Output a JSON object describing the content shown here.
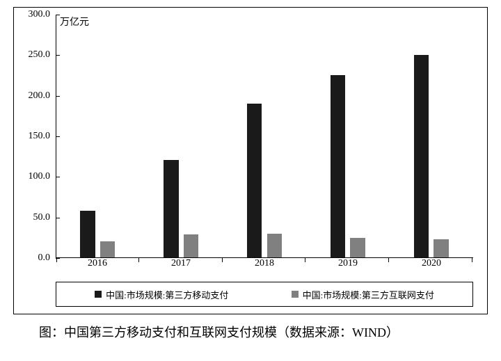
{
  "chart": {
    "type": "bar",
    "unit_label": "万亿元",
    "background_color": "#ffffff",
    "axis_color": "#000000",
    "label_fontsize": 14,
    "y": {
      "min": 0,
      "max": 300,
      "ticks": [
        "0.0",
        "50.0",
        "100.0",
        "150.0",
        "200.0",
        "250.0",
        "300.0"
      ],
      "tick_values": [
        0,
        50,
        100,
        150,
        200,
        250,
        300
      ]
    },
    "x": {
      "categories": [
        "2016",
        "2017",
        "2018",
        "2019",
        "2020"
      ]
    },
    "series": [
      {
        "name": "中国:市场规模:第三方移动支付",
        "color": "#1a1a1a",
        "values": [
          58,
          120,
          190,
          225,
          250
        ]
      },
      {
        "name": "中国:市场规模:第三方互联网支付",
        "color": "#808080",
        "values": [
          20,
          28,
          29,
          24,
          22
        ]
      }
    ],
    "bar_width_pct": 18,
    "bar_gap_pct": 6
  },
  "caption": {
    "prefix": "　　图：",
    "text": "中国第三方移动支付和互联网支付规模（数据来源：WIND）"
  }
}
